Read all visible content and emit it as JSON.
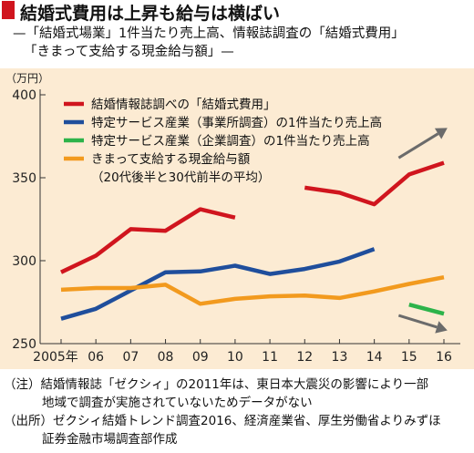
{
  "header": {
    "title": "結婚式費用は上昇も給与は横ばい",
    "subtitle_line1": "—「結婚式場業」1件当たり売上高、情報誌調査の「結婚式費用」",
    "subtitle_line2": "「きまって支給する現金給与額」—"
  },
  "notes": {
    "line1": "（注）結婚情報誌「ゼクシィ」の2011年は、東日本大震災の影響により一部",
    "line2": "地域で調査が実施されていないためデータがない",
    "line3": "（出所）ゼクシィ結婚トレンド調査2016、経済産業省、厚生労働省よりみずほ",
    "line4": "証券金融市場調査部作成"
  },
  "colors": {
    "background": "#fcebd3",
    "title_marker": "#d0151e",
    "arrow": "#6b6b6b"
  },
  "chart_data": {
    "type": "line",
    "y_unit": "（万円）",
    "ylim": [
      250,
      400
    ],
    "yticks": [
      250,
      300,
      350,
      400
    ],
    "grid": false,
    "legend_position": "top-left",
    "x": [
      "2005年",
      "06",
      "07",
      "08",
      "09",
      "10",
      "11",
      "12",
      "13",
      "14",
      "15",
      "16"
    ],
    "series": [
      {
        "name": "結婚情報誌調べの「結婚式費用」",
        "color": "#d0151e",
        "values": [
          293,
          303,
          319,
          318,
          331,
          326,
          null,
          344,
          341,
          334,
          352,
          359
        ]
      },
      {
        "name": "特定サービス産業（事業所調査）の1件当たり売上高",
        "color": "#1f4e9c",
        "values": [
          265,
          271,
          282,
          293,
          293.5,
          297,
          292,
          295,
          299.5,
          307,
          null,
          null
        ]
      },
      {
        "name": "特定サービス産業（企業調査）の1件当たり売上高",
        "color": "#2db34a",
        "values": [
          null,
          null,
          null,
          null,
          null,
          null,
          null,
          null,
          null,
          null,
          273.5,
          268
        ]
      },
      {
        "name": "きまって支給する現金給与額\n（20代後半と30代前半の平均）",
        "color": "#f29a1e",
        "values": [
          282.5,
          283.5,
          283.5,
          285.5,
          274,
          277,
          278.5,
          279,
          277.5,
          281.5,
          286,
          290
        ]
      }
    ],
    "arrows": [
      {
        "from_x": 14.7,
        "from_y": 362,
        "to_x": 16.1,
        "to_y": 380
      },
      {
        "from_x": 14.7,
        "from_y": 267,
        "to_x": 16.1,
        "to_y": 258
      }
    ]
  }
}
